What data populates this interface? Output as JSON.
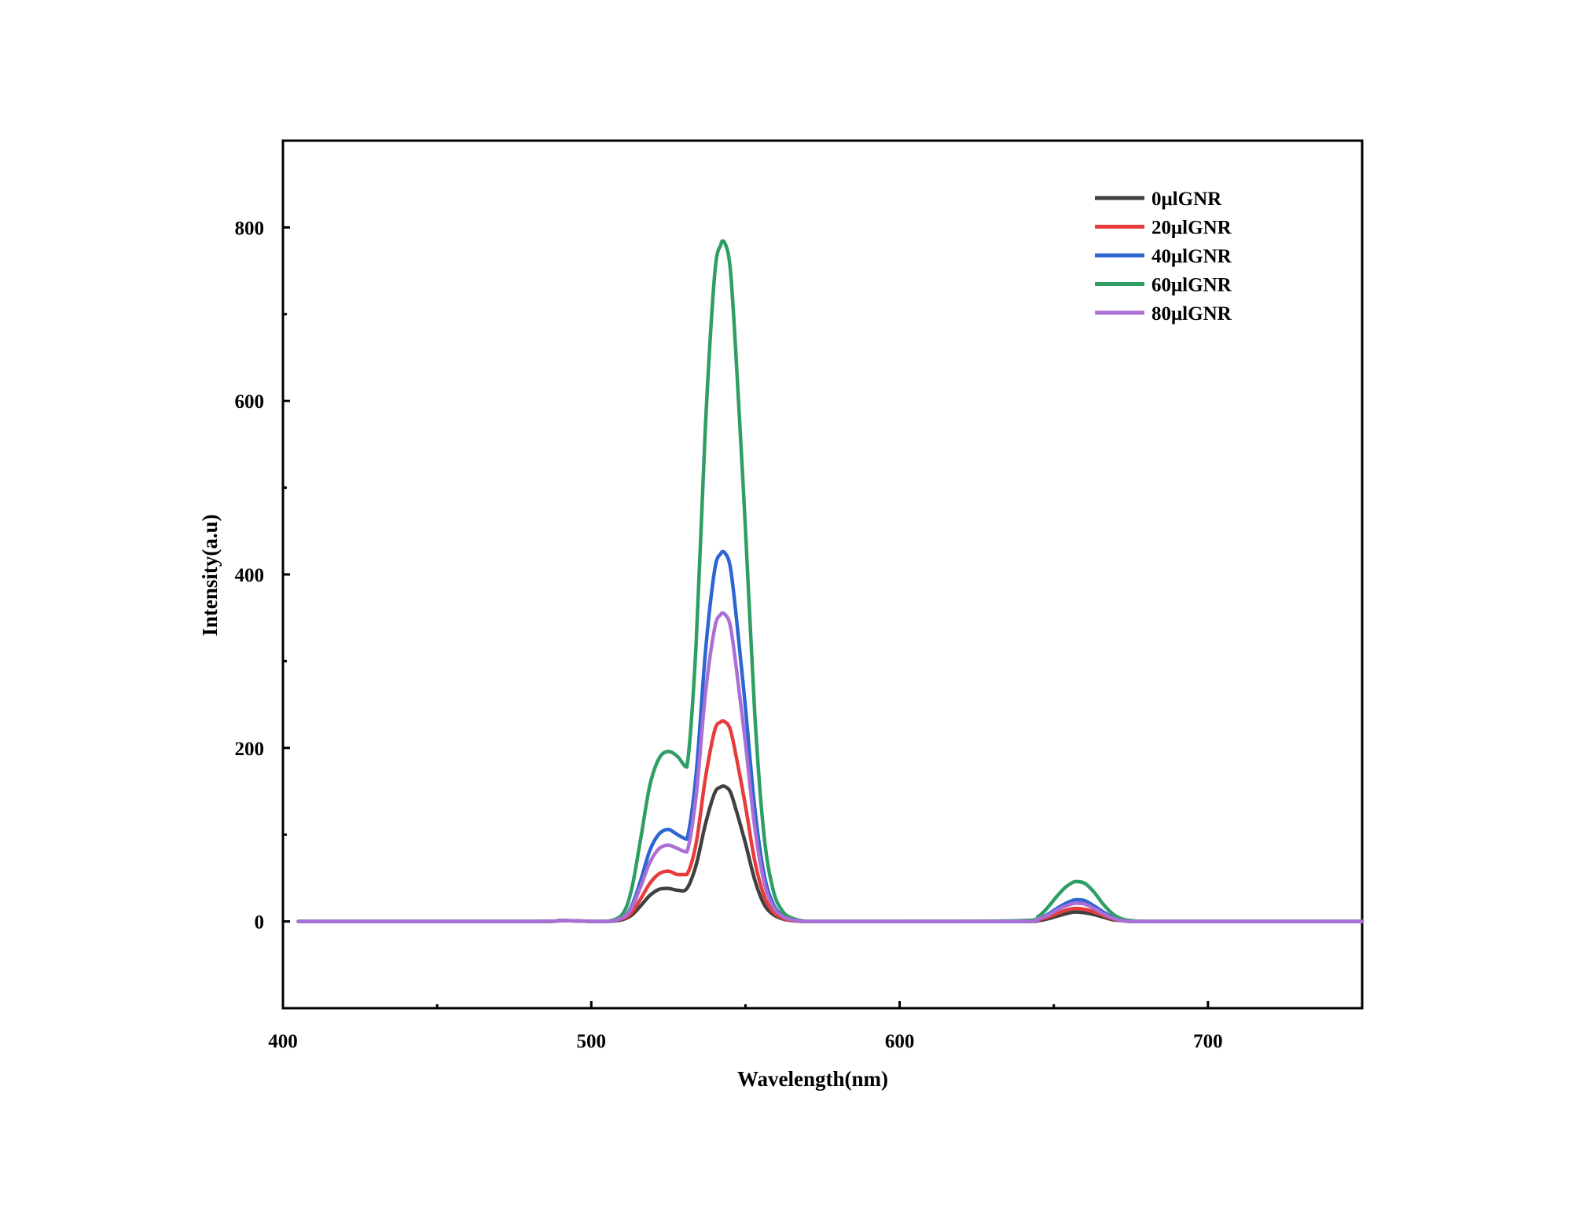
{
  "chart_data": {
    "type": "line",
    "title": "",
    "xlabel": "Wavelength(nm)",
    "ylabel": "Intensity(a.u)",
    "xlim": [
      400,
      750
    ],
    "ylim": [
      -100,
      900
    ],
    "x_ticks": [
      400,
      500,
      600,
      700
    ],
    "x_minor_ticks": [
      450,
      550,
      650
    ],
    "y_ticks": [
      0,
      200,
      400,
      600,
      800
    ],
    "y_minor_ticks": [
      100,
      300,
      500,
      700
    ],
    "grid": false,
    "legend_position": "top-right",
    "x": [
      405,
      480,
      490,
      500,
      505,
      510,
      513,
      516,
      519,
      522,
      525,
      528,
      531,
      534,
      537,
      540,
      542,
      543,
      545,
      547,
      550,
      553,
      556,
      559,
      562,
      565,
      570,
      580,
      600,
      640,
      645,
      648,
      651,
      654,
      657,
      660,
      663,
      666,
      669,
      672,
      675,
      680,
      700,
      750
    ],
    "series": [
      {
        "name": "0μlGNR",
        "color": "#404040",
        "values": [
          0,
          0,
          1,
          0,
          0,
          2,
          7,
          18,
          30,
          37,
          38,
          36,
          38,
          65,
          112,
          148,
          155,
          156,
          150,
          128,
          90,
          48,
          20,
          8,
          3,
          1,
          0,
          0,
          0,
          0,
          1,
          3,
          6,
          9,
          11,
          10,
          8,
          5,
          2,
          1,
          0,
          0,
          0,
          0
        ]
      },
      {
        "name": "20μlGNR",
        "color": "#e83c3c",
        "values": [
          0,
          0,
          1,
          0,
          0,
          3,
          10,
          26,
          44,
          55,
          58,
          54,
          54,
          90,
          165,
          220,
          230,
          231,
          222,
          190,
          133,
          70,
          30,
          11,
          4,
          1,
          0,
          0,
          0,
          0,
          2,
          5,
          9,
          13,
          15,
          14,
          11,
          7,
          3,
          1,
          0,
          0,
          0,
          0
        ]
      },
      {
        "name": "40μlGNR",
        "color": "#2b66d2",
        "values": [
          0,
          0,
          1,
          0,
          0,
          4,
          17,
          47,
          82,
          101,
          106,
          100,
          95,
          170,
          310,
          405,
          424,
          426,
          410,
          352,
          246,
          131,
          55,
          20,
          7,
          2,
          0,
          0,
          0,
          0,
          3,
          8,
          15,
          21,
          25,
          24,
          18,
          11,
          5,
          2,
          0,
          0,
          0,
          0
        ]
      },
      {
        "name": "60μlGNR",
        "color": "#2f9e64",
        "values": [
          0,
          0,
          1,
          0,
          0,
          8,
          36,
          95,
          157,
          188,
          196,
          190,
          178,
          320,
          570,
          745,
          780,
          784,
          755,
          648,
          452,
          240,
          100,
          36,
          12,
          4,
          0,
          0,
          0,
          1,
          6,
          16,
          29,
          40,
          46,
          44,
          34,
          20,
          9,
          3,
          1,
          0,
          0,
          0
        ]
      },
      {
        "name": "80μlGNR",
        "color": "#ab6ed6",
        "values": [
          0,
          0,
          1,
          0,
          0,
          4,
          15,
          40,
          68,
          84,
          88,
          84,
          80,
          145,
          262,
          338,
          354,
          355,
          342,
          293,
          205,
          109,
          46,
          17,
          6,
          2,
          0,
          0,
          0,
          0,
          3,
          7,
          13,
          18,
          21,
          20,
          15,
          9,
          4,
          1,
          0,
          0,
          0,
          0
        ]
      }
    ]
  }
}
